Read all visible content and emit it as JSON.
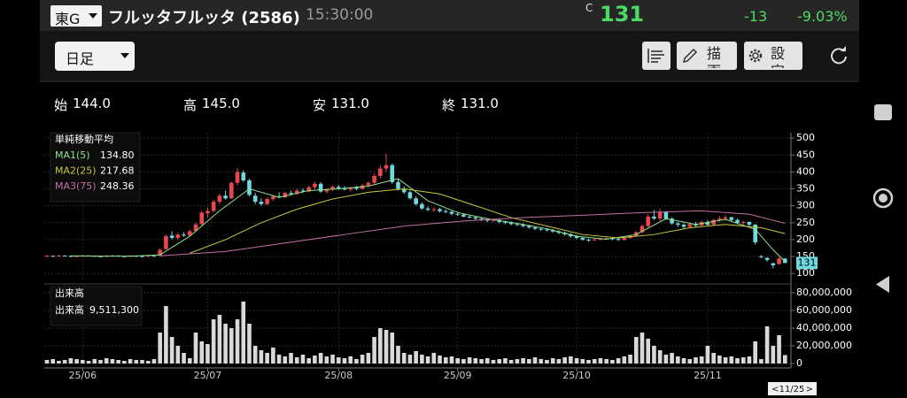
{
  "header": {
    "market": "東G",
    "title": "フルッタフルッタ (2586)",
    "time": "15:30:00",
    "close_mark": "C",
    "price": "131",
    "change": "-13",
    "change_pct": "-9.03%"
  },
  "toolbar": {
    "period": "日足",
    "draw": "描画",
    "settings": "設定"
  },
  "ohlc": [
    {
      "label": "始",
      "value": "144.0"
    },
    {
      "label": "高",
      "value": "145.0"
    },
    {
      "label": "安",
      "value": "131.0"
    },
    {
      "label": "終",
      "value": "131.0"
    }
  ],
  "price_chart": {
    "type": "candlestick",
    "legend_title": "単純移動平均",
    "up_color": "#e8474c",
    "down_color": "#6fd9e0",
    "candles": [
      [
        152,
        155,
        150,
        152
      ],
      [
        152,
        153,
        149,
        151
      ],
      [
        151,
        155,
        150,
        153
      ],
      [
        153,
        154,
        150,
        152
      ],
      [
        152,
        153,
        148,
        150
      ],
      [
        150,
        153,
        149,
        151
      ],
      [
        151,
        155,
        150,
        153
      ],
      [
        153,
        154,
        151,
        152
      ],
      [
        152,
        153,
        149,
        151
      ],
      [
        151,
        152,
        148,
        150
      ],
      [
        150,
        154,
        149,
        152
      ],
      [
        152,
        155,
        151,
        153
      ],
      [
        153,
        154,
        150,
        151
      ],
      [
        151,
        152,
        148,
        150
      ],
      [
        150,
        154,
        149,
        152
      ],
      [
        152,
        153,
        150,
        151
      ],
      [
        151,
        152,
        148,
        150
      ],
      [
        150,
        154,
        149,
        152
      ],
      [
        152,
        154,
        150,
        151
      ],
      [
        152,
        175,
        151,
        170
      ],
      [
        172,
        215,
        170,
        210
      ],
      [
        212,
        225,
        200,
        205
      ],
      [
        205,
        220,
        198,
        215
      ],
      [
        215,
        222,
        208,
        212
      ],
      [
        212,
        230,
        210,
        225
      ],
      [
        226,
        250,
        222,
        245
      ],
      [
        246,
        285,
        242,
        280
      ],
      [
        278,
        295,
        265,
        285
      ],
      [
        285,
        318,
        280,
        312
      ],
      [
        312,
        335,
        305,
        330
      ],
      [
        330,
        345,
        318,
        322
      ],
      [
        322,
        372,
        320,
        368
      ],
      [
        368,
        412,
        360,
        400
      ],
      [
        398,
        405,
        370,
        375
      ],
      [
        375,
        380,
        328,
        332
      ],
      [
        330,
        338,
        305,
        312
      ],
      [
        312,
        322,
        300,
        305
      ],
      [
        305,
        325,
        302,
        320
      ],
      [
        320,
        332,
        315,
        328
      ],
      [
        328,
        340,
        322,
        325
      ],
      [
        325,
        342,
        322,
        338
      ],
      [
        338,
        345,
        330,
        335
      ],
      [
        335,
        350,
        332,
        345
      ],
      [
        345,
        352,
        338,
        342
      ],
      [
        342,
        360,
        340,
        355
      ],
      [
        355,
        372,
        350,
        365
      ],
      [
        365,
        370,
        338,
        342
      ],
      [
        342,
        352,
        336,
        348
      ],
      [
        348,
        360,
        344,
        356
      ],
      [
        356,
        362,
        348,
        352
      ],
      [
        352,
        358,
        345,
        348
      ],
      [
        348,
        356,
        342,
        354
      ],
      [
        354,
        358,
        346,
        350
      ],
      [
        350,
        365,
        348,
        360
      ],
      [
        360,
        372,
        355,
        368
      ],
      [
        368,
        395,
        362,
        388
      ],
      [
        388,
        420,
        380,
        410
      ],
      [
        410,
        455,
        400,
        420
      ],
      [
        420,
        425,
        365,
        370
      ],
      [
        370,
        378,
        345,
        350
      ],
      [
        350,
        358,
        335,
        340
      ],
      [
        340,
        345,
        318,
        322
      ],
      [
        322,
        328,
        300,
        305
      ],
      [
        305,
        310,
        288,
        292
      ],
      [
        292,
        298,
        284,
        288
      ],
      [
        288,
        295,
        282,
        290
      ],
      [
        290,
        294,
        280,
        284
      ],
      [
        284,
        290,
        278,
        282
      ],
      [
        282,
        286,
        272,
        276
      ],
      [
        276,
        282,
        270,
        274
      ],
      [
        274,
        278,
        266,
        268
      ],
      [
        268,
        272,
        262,
        266
      ],
      [
        266,
        270,
        258,
        262
      ],
      [
        262,
        266,
        255,
        260
      ],
      [
        260,
        264,
        252,
        256
      ],
      [
        256,
        262,
        252,
        258
      ],
      [
        258,
        260,
        248,
        252
      ],
      [
        252,
        256,
        246,
        250
      ],
      [
        250,
        254,
        242,
        246
      ],
      [
        246,
        250,
        240,
        244
      ],
      [
        244,
        248,
        236,
        240
      ],
      [
        240,
        244,
        232,
        236
      ],
      [
        236,
        240,
        228,
        232
      ],
      [
        232,
        236,
        226,
        230
      ],
      [
        230,
        234,
        224,
        228
      ],
      [
        228,
        232,
        220,
        224
      ],
      [
        224,
        228,
        216,
        220
      ],
      [
        220,
        224,
        212,
        216
      ],
      [
        216,
        220,
        206,
        210
      ],
      [
        210,
        214,
        202,
        205
      ],
      [
        205,
        208,
        196,
        200
      ],
      [
        200,
        203,
        194,
        198
      ],
      [
        198,
        204,
        196,
        201
      ],
      [
        201,
        205,
        198,
        202
      ],
      [
        202,
        207,
        199,
        204
      ],
      [
        204,
        206,
        198,
        202
      ],
      [
        202,
        204,
        196,
        199
      ],
      [
        199,
        208,
        197,
        205
      ],
      [
        205,
        214,
        203,
        211
      ],
      [
        211,
        225,
        209,
        222
      ],
      [
        222,
        245,
        218,
        240
      ],
      [
        240,
        275,
        236,
        268
      ],
      [
        268,
        288,
        258,
        262
      ],
      [
        262,
        292,
        255,
        282
      ],
      [
        282,
        285,
        258,
        262
      ],
      [
        262,
        266,
        244,
        248
      ],
      [
        248,
        252,
        238,
        244
      ],
      [
        244,
        248,
        232,
        238
      ],
      [
        238,
        250,
        234,
        246
      ],
      [
        246,
        252,
        238,
        242
      ],
      [
        242,
        256,
        240,
        252
      ],
      [
        252,
        258,
        240,
        244
      ],
      [
        244,
        262,
        242,
        258
      ],
      [
        258,
        270,
        252,
        262
      ],
      [
        262,
        272,
        256,
        266
      ],
      [
        266,
        268,
        254,
        258
      ],
      [
        258,
        262,
        246,
        250
      ],
      [
        250,
        256,
        244,
        252
      ],
      [
        252,
        254,
        240,
        244
      ],
      [
        244,
        246,
        185,
        192
      ],
      [
        150,
        155,
        146,
        148
      ],
      [
        146,
        148,
        135,
        140
      ],
      [
        130,
        132,
        115,
        124
      ],
      [
        128,
        148,
        126,
        144
      ],
      [
        144,
        145,
        131,
        131
      ]
    ],
    "ylim": [
      77,
      516
    ],
    "yticks": [
      100,
      150,
      200,
      250,
      300,
      350,
      400,
      450,
      500
    ],
    "ma": [
      {
        "name": "MA1(5)",
        "color": "#8fe38f",
        "last": "134.80",
        "x": [
          4,
          9,
          14,
          19,
          24,
          29,
          34,
          39,
          44,
          49,
          54,
          59,
          64,
          69,
          74,
          79,
          84,
          89,
          94,
          99,
          104,
          109,
          114,
          119,
          122,
          124
        ],
        "values": [
          152,
          151,
          151,
          155,
          210,
          285,
          350,
          325,
          345,
          350,
          358,
          380,
          315,
          280,
          262,
          248,
          232,
          210,
          201,
          215,
          262,
          245,
          260,
          230,
          170,
          134.8
        ]
      },
      {
        "name": "MA2(25)",
        "color": "#c9c83c",
        "last": "217.68",
        "x": [
          24,
          30,
          36,
          42,
          48,
          54,
          60,
          66,
          72,
          78,
          84,
          90,
          96,
          102,
          108,
          114,
          120,
          124
        ],
        "values": [
          160,
          200,
          250,
          290,
          320,
          340,
          350,
          335,
          300,
          265,
          240,
          215,
          205,
          215,
          235,
          245,
          235,
          217.68
        ]
      },
      {
        "name": "MA3(75)",
        "color": "#c46fa6",
        "last": "248.36",
        "x": [
          19,
          30,
          40,
          50,
          60,
          70,
          80,
          90,
          100,
          110,
          118,
          124
        ],
        "values": [
          152,
          165,
          190,
          215,
          240,
          255,
          265,
          272,
          280,
          285,
          275,
          248.36
        ]
      }
    ],
    "xticks": [
      {
        "value": 6,
        "label": "25/06"
      },
      {
        "value": 27,
        "label": "25/07"
      },
      {
        "value": 49,
        "label": "25/08"
      },
      {
        "value": 69,
        "label": "25/09"
      },
      {
        "value": 89,
        "label": "25/10"
      },
      {
        "value": 111,
        "label": "25/11"
      }
    ],
    "date": "11/25"
  },
  "volume_chart": {
    "type": "bar",
    "title": "出来高",
    "legend_name": "出来高",
    "last": "9,511,300",
    "color": "#d9d9d9",
    "values": [
      4000000,
      5000000,
      3000000,
      4000000,
      6000000,
      5000000,
      4000000,
      3000000,
      5000000,
      4000000,
      6000000,
      5000000,
      4000000,
      3000000,
      5000000,
      4000000,
      4000000,
      3000000,
      5000000,
      35000000,
      65000000,
      30000000,
      20000000,
      12000000,
      6000000,
      35000000,
      25000000,
      22000000,
      50000000,
      55000000,
      45000000,
      40000000,
      50000000,
      70000000,
      45000000,
      20000000,
      15000000,
      12000000,
      18000000,
      10000000,
      8000000,
      12000000,
      7000000,
      10000000,
      6000000,
      9000000,
      12000000,
      8000000,
      10000000,
      7000000,
      6000000,
      8000000,
      5000000,
      10000000,
      12000000,
      30000000,
      40000000,
      38000000,
      35000000,
      20000000,
      12000000,
      10000000,
      14000000,
      10000000,
      8000000,
      12000000,
      9000000,
      7000000,
      8000000,
      6000000,
      5000000,
      7000000,
      6000000,
      5000000,
      6000000,
      4000000,
      5000000,
      6000000,
      4000000,
      5000000,
      6000000,
      5000000,
      7000000,
      5000000,
      4000000,
      6000000,
      5000000,
      7000000,
      8000000,
      6000000,
      5000000,
      4000000,
      5000000,
      6000000,
      5000000,
      4000000,
      6000000,
      8000000,
      10000000,
      30000000,
      35000000,
      28000000,
      20000000,
      15000000,
      10000000,
      12000000,
      8000000,
      6000000,
      5000000,
      7000000,
      8000000,
      20000000,
      12000000,
      9000000,
      7000000,
      8000000,
      6000000,
      7000000,
      8000000,
      25000000,
      5000000,
      42000000,
      20000000,
      32000000,
      9511300
    ],
    "ylim": [
      0,
      86000000
    ],
    "yticks": [
      0,
      {
        "value": 20000000,
        "label": "20,000,000"
      },
      {
        "value": 40000000,
        "label": "40,000,000"
      },
      {
        "value": 60000000,
        "label": "60,000,000"
      },
      {
        "value": 80000000,
        "label": "80,000,000"
      }
    ]
  }
}
